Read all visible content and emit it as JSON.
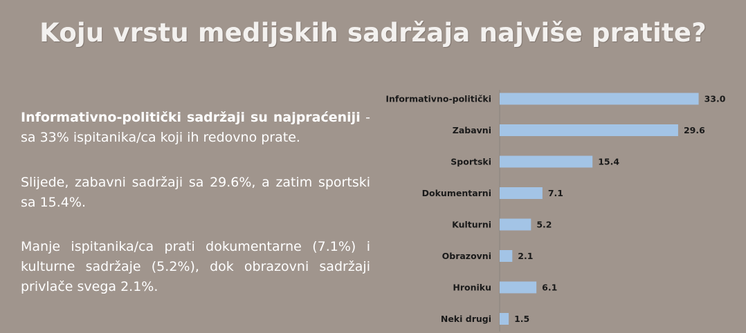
{
  "title": "Koju vrstu medijskih sadržaja najviše pratite?",
  "paragraphs": {
    "p1_bold": "Informativno-politički sadržaji su najpraćeniji",
    "p1_rest": " - sa 33% ispitanika/ca koji ih redovno prate.",
    "p2": "Slijede, zabavni sadržaji sa 29.6%, a zatim sportski sa 15.4%.",
    "p3": "Manje ispitanika/ca prati dokumentarne (7.1%) i kulturne sadržaje (5.2%), dok obrazovni sadržaji privlače svega 2.1%."
  },
  "chart_data": {
    "type": "bar",
    "orientation": "horizontal",
    "categories": [
      "Informativno-politički",
      "Zabavni",
      "Sportski",
      "Dokumentarni",
      "Kulturni",
      "Obrazovni",
      "Hroniku",
      "Neki drugi"
    ],
    "values": [
      33.0,
      29.6,
      15.4,
      7.1,
      5.2,
      2.1,
      6.1,
      1.5
    ],
    "value_labels": [
      "33.0",
      "29.6",
      "15.4",
      "7.1",
      "5.2",
      "2.1",
      "6.1",
      "1.5"
    ],
    "xlim": [
      0,
      35
    ],
    "bar_color": "#a3c4e6",
    "grid": false
  }
}
